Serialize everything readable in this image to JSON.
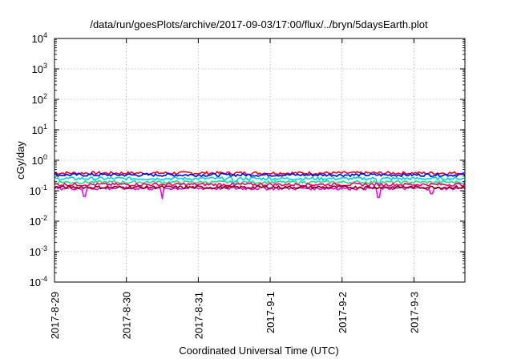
{
  "chart_data": {
    "type": "line",
    "title": "/data/run/goesPlots/archive/2017-09-03/17:00/flux/../bryn/5daysEarth.plot",
    "xlabel": "Coordinated Universal Time (UTC)",
    "ylabel": "cGy/day",
    "y_scale": "log",
    "ylim": [
      0.0001,
      10000
    ],
    "y_ticks": [
      {
        "value": 0.0001,
        "base": "10",
        "exp": "-4"
      },
      {
        "value": 0.001,
        "base": "10",
        "exp": "-3"
      },
      {
        "value": 0.01,
        "base": "10",
        "exp": "-2"
      },
      {
        "value": 0.1,
        "base": "10",
        "exp": "-1"
      },
      {
        "value": 1,
        "base": "10",
        "exp": "0"
      },
      {
        "value": 10,
        "base": "10",
        "exp": "1"
      },
      {
        "value": 100,
        "base": "10",
        "exp": "2"
      },
      {
        "value": 1000,
        "base": "10",
        "exp": "3"
      },
      {
        "value": 10000,
        "base": "10",
        "exp": "4"
      }
    ],
    "xlim": [
      "2017-08-29T00:00",
      "2017-09-03T17:00"
    ],
    "x_ticks": [
      "2017-8-29",
      "2017-8-30",
      "2017-8-31",
      "2017-9-1",
      "2017-9-2",
      "2017-9-3"
    ],
    "grid": true,
    "series": [
      {
        "color": "#ff0000",
        "base_value": 0.38,
        "dips": []
      },
      {
        "color": "#0000ff",
        "base_value": 0.33,
        "dips": []
      },
      {
        "color": "#00ccff",
        "base_value": 0.25,
        "dips": [
          {
            "x": "2017-08-31T12:00",
            "value": 0.15
          },
          {
            "x": "2017-09-02T12:00",
            "value": 0.15
          }
        ]
      },
      {
        "color": "#00ee88",
        "base_value": 0.19,
        "dips": []
      },
      {
        "color": "#ff0066",
        "base_value": 0.16,
        "dips": []
      },
      {
        "color": "#ff00ff",
        "base_value": 0.12,
        "dips": [
          {
            "x": "2017-08-29T10:00",
            "value": 0.065
          },
          {
            "x": "2017-08-30T12:00",
            "value": 0.055
          },
          {
            "x": "2017-09-02T12:00",
            "value": 0.06
          },
          {
            "x": "2017-09-03T06:00",
            "value": 0.08
          }
        ]
      },
      {
        "color": "#880000",
        "base_value": 0.13,
        "dips": []
      }
    ]
  }
}
